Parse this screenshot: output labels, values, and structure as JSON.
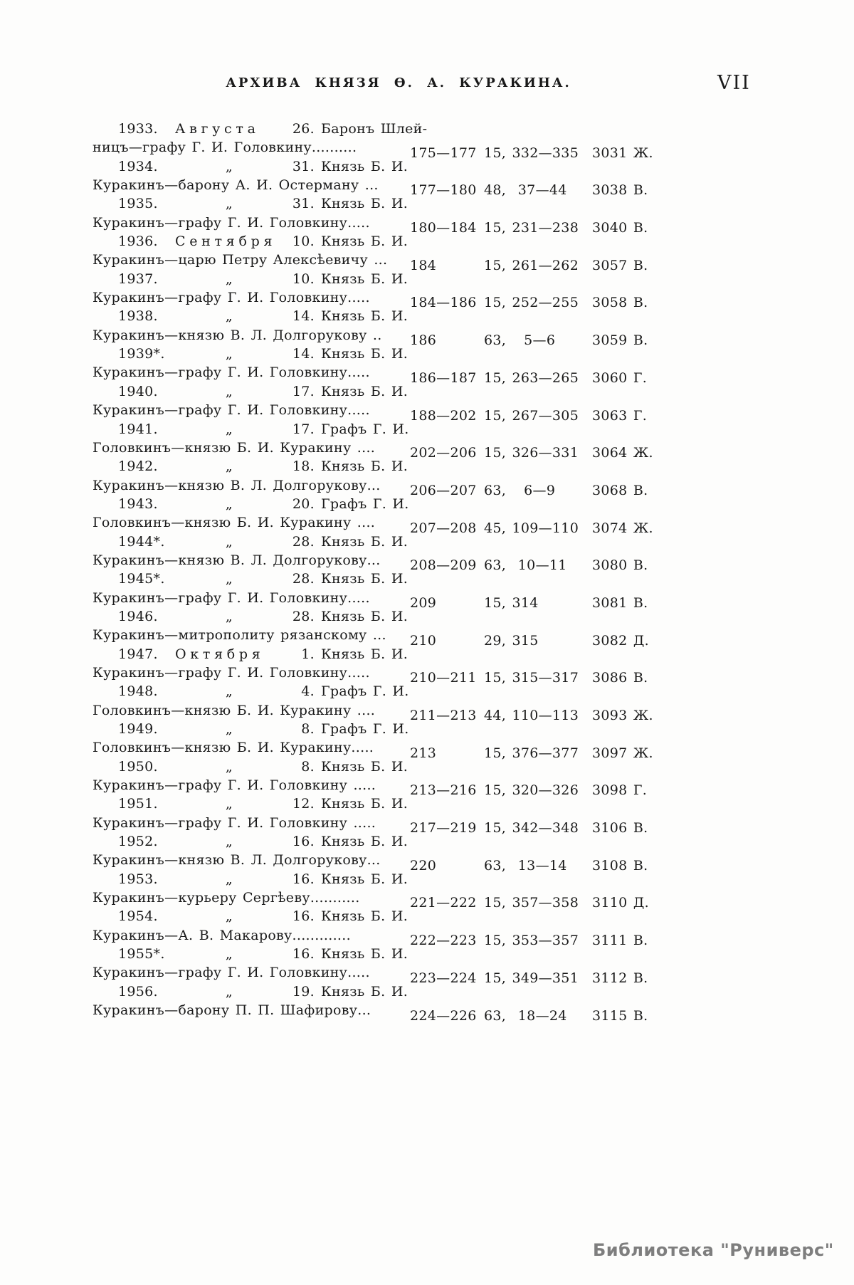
{
  "page": {
    "header": {
      "title": "АРХИВА КНЯЗЯ Ѳ. А. КУРАКИНА.",
      "page_number": "VII"
    },
    "watermark": "Библиотека \"Руниверс\"",
    "colors": {
      "paper": "#fdfdfc",
      "ink": "#1a1a1a",
      "watermark_gray": "#7e7e7e"
    }
  },
  "index": {
    "entries": [
      {
        "year": "1933.",
        "month": "Августа",
        "day": "26.",
        "sender": "Баронъ Шлей-",
        "body": "ницъ—графу Г. И. Головкину..........",
        "pages": "175—177",
        "refs": "15, 332—335",
        "code": "3031 Ж."
      },
      {
        "year": "1934.",
        "month": "„",
        "day": "31.",
        "sender": "Князь Б. И.",
        "body": "Куракинъ—барону А. И. Остерману ...",
        "pages": "177—180",
        "refs": "48,  37—44",
        "code": "3038 В."
      },
      {
        "year": "1935.",
        "month": "„",
        "day": "31.",
        "sender": "Князь Б. И.",
        "body": "Куракинъ—графу Г. И. Головкину.....",
        "pages": "180—184",
        "refs": "15, 231—238",
        "code": "3040 В."
      },
      {
        "year": "1936.",
        "month": "Сентября",
        "day": "10.",
        "sender": "Князь Б. И.",
        "body": "Куракинъ—царю Петру Алексѣевичу ...",
        "pages": "184",
        "refs": "15, 261—262",
        "code": "3057 В."
      },
      {
        "year": "1937.",
        "month": "„",
        "day": "10.",
        "sender": "Князь Б. И.",
        "body": "Куракинъ—графу Г. И. Головкину.....",
        "pages": "184—186",
        "refs": "15, 252—255",
        "code": "3058 В."
      },
      {
        "year": "1938.",
        "month": "„",
        "day": "14.",
        "sender": "Князь Б. И.",
        "body": "Куракинъ—князю В. Л. Долгорукову ..",
        "pages": "186",
        "refs": "63,   5—6",
        "code": "3059 В."
      },
      {
        "year": "1939*.",
        "month": "„",
        "day": "14.",
        "sender": "Князь Б. И.",
        "body": "Куракинъ—графу Г. И. Головкину.....",
        "pages": "186—187",
        "refs": "15, 263—265",
        "code": "3060 Г."
      },
      {
        "year": "1940.",
        "month": "„",
        "day": "17.",
        "sender": "Князь Б. И.",
        "body": "Куракинъ—графу Г. И. Головкину.....",
        "pages": "188—202",
        "refs": "15, 267—305",
        "code": "3063 Г."
      },
      {
        "year": "1941.",
        "month": "„",
        "day": "17.",
        "sender": "Графъ Г. И.",
        "body": "Головкинъ—князю Б. И. Куракину ....",
        "pages": "202—206",
        "refs": "15, 326—331",
        "code": "3064 Ж."
      },
      {
        "year": "1942.",
        "month": "„",
        "day": "18.",
        "sender": "Князь Б. И.",
        "body": "Куракинъ—князю В. Л. Долгорукову...",
        "pages": "206—207",
        "refs": "63,   6—9",
        "code": "3068 В."
      },
      {
        "year": "1943.",
        "month": "„",
        "day": "20.",
        "sender": "Графъ Г. И.",
        "body": "Головкинъ—князю Б. И. Куракину ....",
        "pages": "207—208",
        "refs": "45, 109—110",
        "code": "3074 Ж."
      },
      {
        "year": "1944*.",
        "month": "„",
        "day": "28.",
        "sender": "Князь Б. И.",
        "body": "Куракинъ—князю В. Л. Долгорукову...",
        "pages": "208—209",
        "refs": "63,  10—11",
        "code": "3080 В."
      },
      {
        "year": "1945*.",
        "month": "„",
        "day": "28.",
        "sender": "Князь Б. И.",
        "body": "Куракинъ—графу Г. И. Головкину.....",
        "pages": "209",
        "refs": "15, 314",
        "code": "3081 В."
      },
      {
        "year": "1946.",
        "month": "„",
        "day": "28.",
        "sender": "Князь Б. И.",
        "body": "Куракинъ—митрополиту рязанскому ...",
        "pages": "210",
        "refs": "29, 315",
        "code": "3082 Д."
      },
      {
        "year": "1947.",
        "month": "Октября",
        "day": "1.",
        "sender": "Князь Б. И.",
        "body": "Куракинъ—графу Г. И. Головкину.....",
        "pages": "210—211",
        "refs": "15, 315—317",
        "code": "3086 В."
      },
      {
        "year": "1948.",
        "month": "„",
        "day": "4.",
        "sender": "Графъ Г. И.",
        "body": "Головкинъ—князю Б. И. Куракину ....",
        "pages": "211—213",
        "refs": "44, 110—113",
        "code": "3093 Ж."
      },
      {
        "year": "1949.",
        "month": "„",
        "day": "8.",
        "sender": "Графъ Г. И.",
        "body": "Головкинъ—князю Б. И. Куракину.....",
        "pages": "213",
        "refs": "15, 376—377",
        "code": "3097 Ж."
      },
      {
        "year": "1950.",
        "month": "„",
        "day": "8.",
        "sender": "Князь Б. И.",
        "body": "Куракинъ—графу Г. И. Головкину .....",
        "pages": "213—216",
        "refs": "15, 320—326",
        "code": "3098 Г."
      },
      {
        "year": "1951.",
        "month": "„",
        "day": "12.",
        "sender": "Князь Б. И.",
        "body": "Куракинъ—графу Г. И. Головкину .....",
        "pages": "217—219",
        "refs": "15, 342—348",
        "code": "3106 В."
      },
      {
        "year": "1952.",
        "month": "„",
        "day": "16.",
        "sender": "Князь Б. И.",
        "body": "Куракинъ—князю В. Л. Долгорукову...",
        "pages": "220",
        "refs": "63,  13—14",
        "code": "3108 В."
      },
      {
        "year": "1953.",
        "month": "„",
        "day": "16.",
        "sender": "Князь Б. И.",
        "body": "Куракинъ—курьеру Сергѣеву...........",
        "pages": "221—222",
        "refs": "15, 357—358",
        "code": "3110 Д."
      },
      {
        "year": "1954.",
        "month": "„",
        "day": "16.",
        "sender": "Князь Б. И.",
        "body": "Куракинъ—А. В. Макарову.............",
        "pages": "222—223",
        "refs": "15, 353—357",
        "code": "3111 В."
      },
      {
        "year": "1955*.",
        "month": "„",
        "day": "16.",
        "sender": "Князь Б. И.",
        "body": "Куракинъ—графу Г. И. Головкину.....",
        "pages": "223—224",
        "refs": "15, 349—351",
        "code": "3112 В."
      },
      {
        "year": "1956.",
        "month": "„",
        "day": "19.",
        "sender": "Князь Б. И.",
        "body": "Куракинъ—барону П. П. Шафирову...",
        "pages": "224—226",
        "refs": "63,  18—24",
        "code": "3115 В."
      }
    ]
  }
}
